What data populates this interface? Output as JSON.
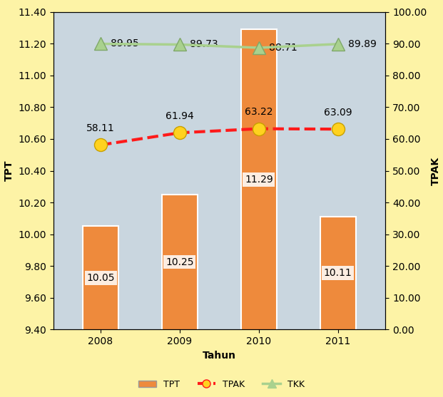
{
  "chart_data": {
    "type": "bar",
    "x_label": "Tahun",
    "y_label": "TPT",
    "y2_label": "TPAK",
    "categories": [
      "2008",
      "2009",
      "2010",
      "2011"
    ],
    "series": [
      {
        "name": "TPT",
        "type": "bar",
        "color": "#ee8a3c",
        "values": [
          10.05,
          10.25,
          11.29,
          10.11
        ]
      },
      {
        "name": "TPAK",
        "type": "line",
        "axis": "y2",
        "color": "#ff1a1a",
        "marker": "o",
        "line_style": "dashed",
        "values": [
          58.11,
          61.94,
          63.22,
          63.09
        ]
      },
      {
        "name": "TKK",
        "type": "line",
        "axis": "y2",
        "color": "#a9d18e",
        "marker": "^",
        "line_style": "solid",
        "values": [
          89.95,
          89.73,
          88.71,
          89.89
        ]
      }
    ],
    "ylim": [
      9.4,
      11.4
    ],
    "yticks": [
      {
        "value": 9.4,
        "label": "9.40"
      },
      {
        "value": 9.6,
        "label": "9.60"
      },
      {
        "value": 9.8,
        "label": "9.80"
      },
      {
        "value": 10.0,
        "label": "10.00"
      },
      {
        "value": 10.2,
        "label": "10.20"
      },
      {
        "value": 10.4,
        "label": "10.40"
      },
      {
        "value": 10.6,
        "label": "10.60"
      },
      {
        "value": 10.8,
        "label": "10.80"
      },
      {
        "value": 11.0,
        "label": "11.00"
      },
      {
        "value": 11.2,
        "label": "11.20"
      },
      {
        "value": 11.4,
        "label": "11.40"
      }
    ],
    "y2lim": [
      0,
      100
    ],
    "y2ticks": [
      {
        "value": 0,
        "label": "0.00"
      },
      {
        "value": 10,
        "label": "10.00"
      },
      {
        "value": 20,
        "label": "20.00"
      },
      {
        "value": 30,
        "label": "30.00"
      },
      {
        "value": 40,
        "label": "40.00"
      },
      {
        "value": 50,
        "label": "50.00"
      },
      {
        "value": 60,
        "label": "60.00"
      },
      {
        "value": 70,
        "label": "70.00"
      },
      {
        "value": 80,
        "label": "80.00"
      },
      {
        "value": 90,
        "label": "90.00"
      },
      {
        "value": 100,
        "label": "100.00"
      }
    ],
    "data_labels": true,
    "legend": "lower center",
    "grid": false
  }
}
